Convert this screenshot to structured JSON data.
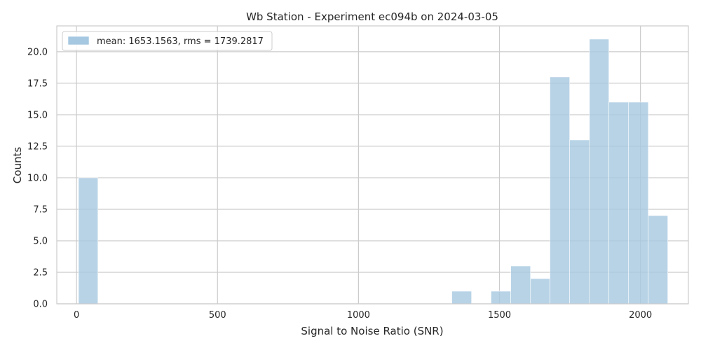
{
  "chart_data": {
    "type": "bar",
    "title": "Wb Station - Experiment ec094b on 2024-03-05",
    "xlabel": "Signal to Noise Ratio (SNR)",
    "ylabel": "Counts",
    "xlim": [
      -70,
      2170
    ],
    "ylim": [
      0,
      22.05
    ],
    "x_ticks": [
      0,
      500,
      1000,
      1500,
      2000
    ],
    "x_tick_labels": [
      "0",
      "500",
      "1000",
      "1500",
      "2000"
    ],
    "y_ticks": [
      0,
      2.5,
      5,
      7.5,
      10,
      12.5,
      15,
      17.5,
      20
    ],
    "y_tick_labels": [
      "0.0",
      "2.5",
      "5.0",
      "7.5",
      "10.0",
      "12.5",
      "15.0",
      "17.5",
      "20.0"
    ],
    "grid": true,
    "legend_position": "top-left",
    "series": [
      {
        "name": "mean: 1653.1563, rms = 1739.2817",
        "color": "#a6c8e0",
        "bins": [
          {
            "x0": 7,
            "x1": 76,
            "count": 10
          },
          {
            "x0": 1331,
            "x1": 1401,
            "count": 1
          },
          {
            "x0": 1470,
            "x1": 1540,
            "count": 1
          },
          {
            "x0": 1540,
            "x1": 1610,
            "count": 3
          },
          {
            "x0": 1610,
            "x1": 1679,
            "count": 2
          },
          {
            "x0": 1679,
            "x1": 1749,
            "count": 18
          },
          {
            "x0": 1749,
            "x1": 1819,
            "count": 13
          },
          {
            "x0": 1819,
            "x1": 1888,
            "count": 21
          },
          {
            "x0": 1888,
            "x1": 1958,
            "count": 16
          },
          {
            "x0": 1958,
            "x1": 2028,
            "count": 16
          },
          {
            "x0": 2028,
            "x1": 2097,
            "count": 7
          }
        ]
      }
    ]
  }
}
